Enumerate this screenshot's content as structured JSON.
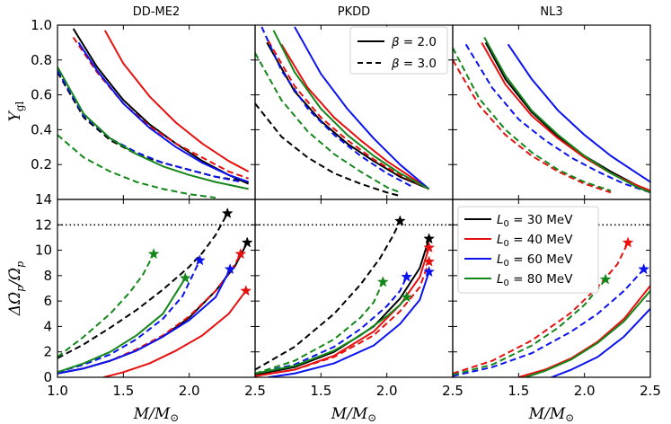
{
  "chart_data": {
    "type": "line",
    "panel_titles": [
      "DD-ME2",
      "PKDD",
      "NL3"
    ],
    "xlabel": "M/M⊙",
    "xlim": [
      1.0,
      2.5
    ],
    "xticks": [
      "1.0",
      "1.5",
      "2.0",
      "2.5"
    ],
    "top_row": {
      "ylabel": "Y_gl",
      "ylim": [
        0.0,
        1.0
      ],
      "yticks": [
        "0.2",
        "0.4",
        "0.6",
        "0.8",
        "1.0"
      ],
      "legend": [
        {
          "label": "β = 2.0",
          "style": "solid"
        },
        {
          "label": "β = 3.0",
          "style": "dashed"
        }
      ]
    },
    "bottom_row": {
      "ylabel": "ΔΩ̇p/Ω̇p",
      "ylim": [
        0,
        14
      ],
      "yticks": [
        "0",
        "2",
        "4",
        "6",
        "8",
        "10",
        "12",
        "14"
      ],
      "reference_line": 12,
      "legend": [
        {
          "label": "L0 = 30 MeV",
          "color": "#000000"
        },
        {
          "label": "L0 = 40 MeV",
          "color": "#e8100f"
        },
        {
          "label": "L0 = 60 MeV",
          "color": "#0a12f0"
        },
        {
          "label": "L0 = 80 MeV",
          "color": "#14871a"
        }
      ]
    },
    "top_series": [
      [
        {
          "color": "#000000",
          "dash": false,
          "x": [
            1.12,
            1.3,
            1.5,
            1.7,
            1.9,
            2.1,
            2.3,
            2.45
          ],
          "y": [
            0.98,
            0.76,
            0.57,
            0.43,
            0.32,
            0.22,
            0.14,
            0.09
          ]
        },
        {
          "color": "#000000",
          "dash": true,
          "x": [
            1.0,
            1.2,
            1.4,
            1.6,
            1.8,
            2.0,
            2.2,
            2.45
          ],
          "y": [
            0.73,
            0.47,
            0.34,
            0.26,
            0.21,
            0.17,
            0.13,
            0.1
          ]
        },
        {
          "color": "#e8100f",
          "dash": false,
          "x": [
            1.36,
            1.5,
            1.7,
            1.9,
            2.1,
            2.3,
            2.45
          ],
          "y": [
            0.97,
            0.78,
            0.59,
            0.44,
            0.32,
            0.22,
            0.16
          ]
        },
        {
          "color": "#e8100f",
          "dash": true,
          "x": [
            1.12,
            1.3,
            1.5,
            1.7,
            1.9,
            2.1,
            2.3,
            2.45
          ],
          "y": [
            0.93,
            0.73,
            0.55,
            0.42,
            0.32,
            0.24,
            0.16,
            0.12
          ]
        },
        {
          "color": "#0a12f0",
          "dash": false,
          "x": [
            1.16,
            1.3,
            1.5,
            1.7,
            1.9,
            2.1,
            2.3,
            2.45
          ],
          "y": [
            0.9,
            0.74,
            0.55,
            0.41,
            0.3,
            0.21,
            0.14,
            0.1
          ]
        },
        {
          "color": "#0a12f0",
          "dash": true,
          "x": [
            1.0,
            1.2,
            1.4,
            1.6,
            1.8,
            2.0,
            2.2,
            2.4
          ],
          "y": [
            0.74,
            0.48,
            0.35,
            0.27,
            0.21,
            0.17,
            0.13,
            0.1
          ]
        },
        {
          "color": "#14871a",
          "dash": false,
          "x": [
            1.0,
            1.2,
            1.4,
            1.6,
            1.8,
            2.0,
            2.2,
            2.45
          ],
          "y": [
            0.76,
            0.49,
            0.35,
            0.26,
            0.19,
            0.14,
            0.1,
            0.06
          ]
        },
        {
          "color": "#14871a",
          "dash": true,
          "x": [
            1.0,
            1.2,
            1.4,
            1.6,
            1.8,
            2.0,
            2.2
          ],
          "y": [
            0.37,
            0.24,
            0.16,
            0.1,
            0.06,
            0.03,
            0.01
          ]
        }
      ],
      [
        {
          "color": "#000000",
          "dash": false,
          "x": [
            1.09,
            1.3,
            1.5,
            1.7,
            1.9,
            2.1,
            2.32
          ],
          "y": [
            0.9,
            0.62,
            0.45,
            0.32,
            0.22,
            0.13,
            0.06
          ]
        },
        {
          "color": "#000000",
          "dash": true,
          "x": [
            1.0,
            1.2,
            1.4,
            1.6,
            1.8,
            2.0,
            2.1
          ],
          "y": [
            0.55,
            0.36,
            0.24,
            0.15,
            0.09,
            0.04,
            0.02
          ]
        },
        {
          "color": "#e8100f",
          "dash": false,
          "x": [
            1.2,
            1.4,
            1.6,
            1.8,
            2.0,
            2.2,
            2.32
          ],
          "y": [
            0.89,
            0.64,
            0.47,
            0.34,
            0.22,
            0.12,
            0.06
          ]
        },
        {
          "color": "#e8100f",
          "dash": true,
          "x": [
            1.1,
            1.3,
            1.5,
            1.7,
            1.9,
            2.1,
            2.32
          ],
          "y": [
            0.91,
            0.65,
            0.47,
            0.34,
            0.23,
            0.14,
            0.06
          ]
        },
        {
          "color": "#0a12f0",
          "dash": false,
          "x": [
            1.3,
            1.5,
            1.7,
            1.9,
            2.1,
            2.32
          ],
          "y": [
            0.99,
            0.72,
            0.52,
            0.35,
            0.2,
            0.06
          ]
        },
        {
          "color": "#0a12f0",
          "dash": true,
          "x": [
            1.05,
            1.2,
            1.4,
            1.6,
            1.8,
            2.0,
            2.2
          ],
          "y": [
            0.99,
            0.74,
            0.52,
            0.37,
            0.25,
            0.15,
            0.07
          ]
        },
        {
          "color": "#14871a",
          "dash": false,
          "x": [
            1.14,
            1.3,
            1.5,
            1.7,
            1.9,
            2.1,
            2.32
          ],
          "y": [
            0.97,
            0.73,
            0.52,
            0.37,
            0.25,
            0.15,
            0.06
          ]
        },
        {
          "color": "#14871a",
          "dash": true,
          "x": [
            1.0,
            1.2,
            1.4,
            1.6,
            1.8,
            2.0,
            2.1
          ],
          "y": [
            0.84,
            0.57,
            0.39,
            0.26,
            0.16,
            0.07,
            0.04
          ]
        }
      ],
      [
        {
          "color": "#000000",
          "dash": false,
          "x": [
            1.25,
            1.4,
            1.6,
            1.8,
            2.0,
            2.2,
            2.4,
            2.5
          ],
          "y": [
            0.9,
            0.69,
            0.5,
            0.36,
            0.25,
            0.16,
            0.08,
            0.05
          ]
        },
        {
          "color": "#e8100f",
          "dash": false,
          "x": [
            1.22,
            1.4,
            1.6,
            1.8,
            2.0,
            2.2,
            2.4,
            2.5
          ],
          "y": [
            0.9,
            0.66,
            0.48,
            0.35,
            0.24,
            0.15,
            0.08,
            0.05
          ]
        },
        {
          "color": "#e8100f",
          "dash": true,
          "x": [
            1.0,
            1.2,
            1.4,
            1.6,
            1.8,
            2.0,
            2.2
          ],
          "y": [
            0.8,
            0.54,
            0.37,
            0.25,
            0.16,
            0.09,
            0.04
          ]
        },
        {
          "color": "#0a12f0",
          "dash": false,
          "x": [
            1.42,
            1.6,
            1.8,
            2.0,
            2.2,
            2.4,
            2.5
          ],
          "y": [
            0.89,
            0.69,
            0.51,
            0.37,
            0.25,
            0.15,
            0.1
          ]
        },
        {
          "color": "#0a12f0",
          "dash": true,
          "x": [
            1.1,
            1.3,
            1.5,
            1.7,
            1.9,
            2.1,
            2.3,
            2.5
          ],
          "y": [
            0.89,
            0.64,
            0.46,
            0.34,
            0.24,
            0.16,
            0.09,
            0.04
          ]
        },
        {
          "color": "#14871a",
          "dash": false,
          "x": [
            1.24,
            1.4,
            1.6,
            1.8,
            2.0,
            2.2,
            2.4,
            2.5
          ],
          "y": [
            0.93,
            0.71,
            0.51,
            0.37,
            0.25,
            0.15,
            0.07,
            0.04
          ]
        },
        {
          "color": "#14871a",
          "dash": true,
          "x": [
            1.0,
            1.2,
            1.4,
            1.6,
            1.8,
            2.0,
            2.2
          ],
          "y": [
            0.87,
            0.58,
            0.4,
            0.27,
            0.17,
            0.1,
            0.05
          ]
        }
      ]
    ],
    "bottom_series": [
      [
        {
          "color": "#000000",
          "dash": false,
          "x": [
            1.0,
            1.2,
            1.4,
            1.6,
            1.8,
            2.0,
            2.2,
            2.35,
            2.44
          ],
          "y": [
            0.3,
            0.7,
            1.3,
            2.1,
            3.2,
            4.7,
            6.8,
            8.8,
            10.6
          ],
          "star": true
        },
        {
          "color": "#000000",
          "dash": true,
          "x": [
            1.0,
            1.2,
            1.4,
            1.6,
            1.8,
            2.0,
            2.1,
            2.2,
            2.29
          ],
          "y": [
            1.5,
            2.6,
            3.9,
            5.3,
            6.9,
            8.7,
            9.8,
            11.2,
            12.9
          ],
          "star": true
        },
        {
          "color": "#e8100f",
          "dash": false,
          "x": [
            1.35,
            1.5,
            1.7,
            1.9,
            2.1,
            2.3,
            2.43
          ],
          "y": [
            0.0,
            0.4,
            1.1,
            2.1,
            3.3,
            5.0,
            6.8
          ],
          "star": true
        },
        {
          "color": "#e8100f",
          "dash": true,
          "x": [
            1.0,
            1.2,
            1.4,
            1.6,
            1.8,
            2.0,
            2.2,
            2.33,
            2.39
          ],
          "y": [
            0.3,
            0.7,
            1.3,
            2.2,
            3.3,
            4.8,
            6.8,
            8.6,
            9.7
          ],
          "star": true
        },
        {
          "color": "#0a12f0",
          "dash": false,
          "x": [
            1.0,
            1.2,
            1.4,
            1.6,
            1.8,
            2.0,
            2.2,
            2.31
          ],
          "y": [
            0.3,
            0.7,
            1.3,
            2.1,
            3.2,
            4.5,
            6.3,
            8.5
          ],
          "star": true
        },
        {
          "color": "#0a12f0",
          "dash": true,
          "x": [
            1.0,
            1.2,
            1.4,
            1.6,
            1.8,
            1.95,
            2.08
          ],
          "y": [
            0.4,
            1.0,
            1.8,
            3.0,
            4.6,
            6.4,
            9.2
          ],
          "star": true
        },
        {
          "color": "#14871a",
          "dash": false,
          "x": [
            1.0,
            1.2,
            1.4,
            1.6,
            1.8,
            1.97
          ],
          "y": [
            0.4,
            1.1,
            2.0,
            3.3,
            5.0,
            7.8
          ],
          "star": true
        },
        {
          "color": "#14871a",
          "dash": true,
          "x": [
            1.0,
            1.2,
            1.4,
            1.55,
            1.65,
            1.73
          ],
          "y": [
            1.6,
            3.2,
            5.0,
            6.7,
            8.1,
            9.7
          ],
          "star": true
        }
      ],
      [
        {
          "color": "#000000",
          "dash": false,
          "x": [
            1.0,
            1.3,
            1.6,
            1.9,
            2.1,
            2.25,
            2.32
          ],
          "y": [
            0.2,
            0.8,
            2.0,
            4.0,
            6.2,
            8.6,
            10.9
          ],
          "star": true
        },
        {
          "color": "#000000",
          "dash": true,
          "x": [
            1.0,
            1.3,
            1.6,
            1.8,
            1.95,
            2.05,
            2.1
          ],
          "y": [
            0.6,
            2.4,
            5.0,
            7.3,
            9.4,
            11.2,
            12.3
          ],
          "star": true
        },
        {
          "color": "#e8100f",
          "dash": false,
          "x": [
            1.0,
            1.3,
            1.6,
            1.9,
            2.1,
            2.25,
            2.32
          ],
          "y": [
            0.1,
            0.6,
            1.7,
            3.6,
            5.7,
            7.9,
            10.2
          ],
          "star": true
        },
        {
          "color": "#e8100f",
          "dash": true,
          "x": [
            1.0,
            1.3,
            1.6,
            1.9,
            2.1,
            2.25,
            2.32
          ],
          "y": [
            0.1,
            0.6,
            1.6,
            3.3,
            5.2,
            7.1,
            9.1
          ],
          "star": true
        },
        {
          "color": "#0a12f0",
          "dash": false,
          "x": [
            1.1,
            1.3,
            1.6,
            1.9,
            2.1,
            2.25,
            2.32
          ],
          "y": [
            0.0,
            0.3,
            1.1,
            2.5,
            4.2,
            6.1,
            8.3
          ],
          "star": true
        },
        {
          "color": "#0a12f0",
          "dash": true,
          "x": [
            1.0,
            1.3,
            1.6,
            1.8,
            2.0,
            2.1,
            2.15
          ],
          "y": [
            0.3,
            1.0,
            2.4,
            3.8,
            5.6,
            6.8,
            7.9
          ],
          "star": true
        },
        {
          "color": "#14871a",
          "dash": false,
          "x": [
            1.0,
            1.3,
            1.6,
            1.8,
            2.0,
            2.1,
            2.15
          ],
          "y": [
            0.3,
            0.9,
            2.1,
            3.3,
            4.8,
            5.7,
            6.3
          ],
          "star": true
        },
        {
          "color": "#14871a",
          "dash": true,
          "x": [
            1.0,
            1.3,
            1.6,
            1.8,
            1.9,
            1.97
          ],
          "y": [
            0.3,
            1.3,
            3.0,
            4.7,
            5.9,
            7.5
          ],
          "star": true
        }
      ],
      [
        {
          "color": "#e8100f",
          "dash": false,
          "x": [
            1.5,
            1.7,
            1.9,
            2.1,
            2.3,
            2.5
          ],
          "y": [
            0.0,
            0.6,
            1.5,
            2.8,
            4.6,
            7.2
          ],
          "star": false
        },
        {
          "color": "#e8100f",
          "dash": true,
          "x": [
            1.0,
            1.3,
            1.6,
            1.9,
            2.1,
            2.25,
            2.33
          ],
          "y": [
            0.3,
            1.3,
            2.9,
            5.1,
            7.1,
            8.9,
            10.6
          ],
          "star": true
        },
        {
          "color": "#0a12f0",
          "dash": false,
          "x": [
            1.75,
            1.9,
            2.1,
            2.3,
            2.5
          ],
          "y": [
            0.0,
            0.6,
            1.6,
            3.2,
            5.4
          ],
          "star": false
        },
        {
          "color": "#0a12f0",
          "dash": true,
          "x": [
            1.0,
            1.3,
            1.6,
            1.9,
            2.1,
            2.3,
            2.45
          ],
          "y": [
            0.1,
            0.8,
            1.9,
            3.6,
            5.0,
            6.8,
            8.5
          ],
          "star": true
        },
        {
          "color": "#14871a",
          "dash": false,
          "x": [
            1.55,
            1.7,
            1.9,
            2.1,
            2.3,
            2.5
          ],
          "y": [
            0.0,
            0.5,
            1.4,
            2.7,
            4.4,
            6.8
          ],
          "star": false
        },
        {
          "color": "#14871a",
          "dash": true,
          "x": [
            1.0,
            1.3,
            1.6,
            1.8,
            2.0,
            2.16
          ],
          "y": [
            0.2,
            1.0,
            2.5,
            3.9,
            5.7,
            7.7
          ],
          "star": true
        },
        {
          "color": "#14871a",
          "dash": true,
          "x": [
            2.16,
            2.3,
            2.44
          ],
          "y": [
            7.7,
            6.8,
            7.3
          ],
          "star": true,
          "hidden": true
        }
      ]
    ]
  }
}
